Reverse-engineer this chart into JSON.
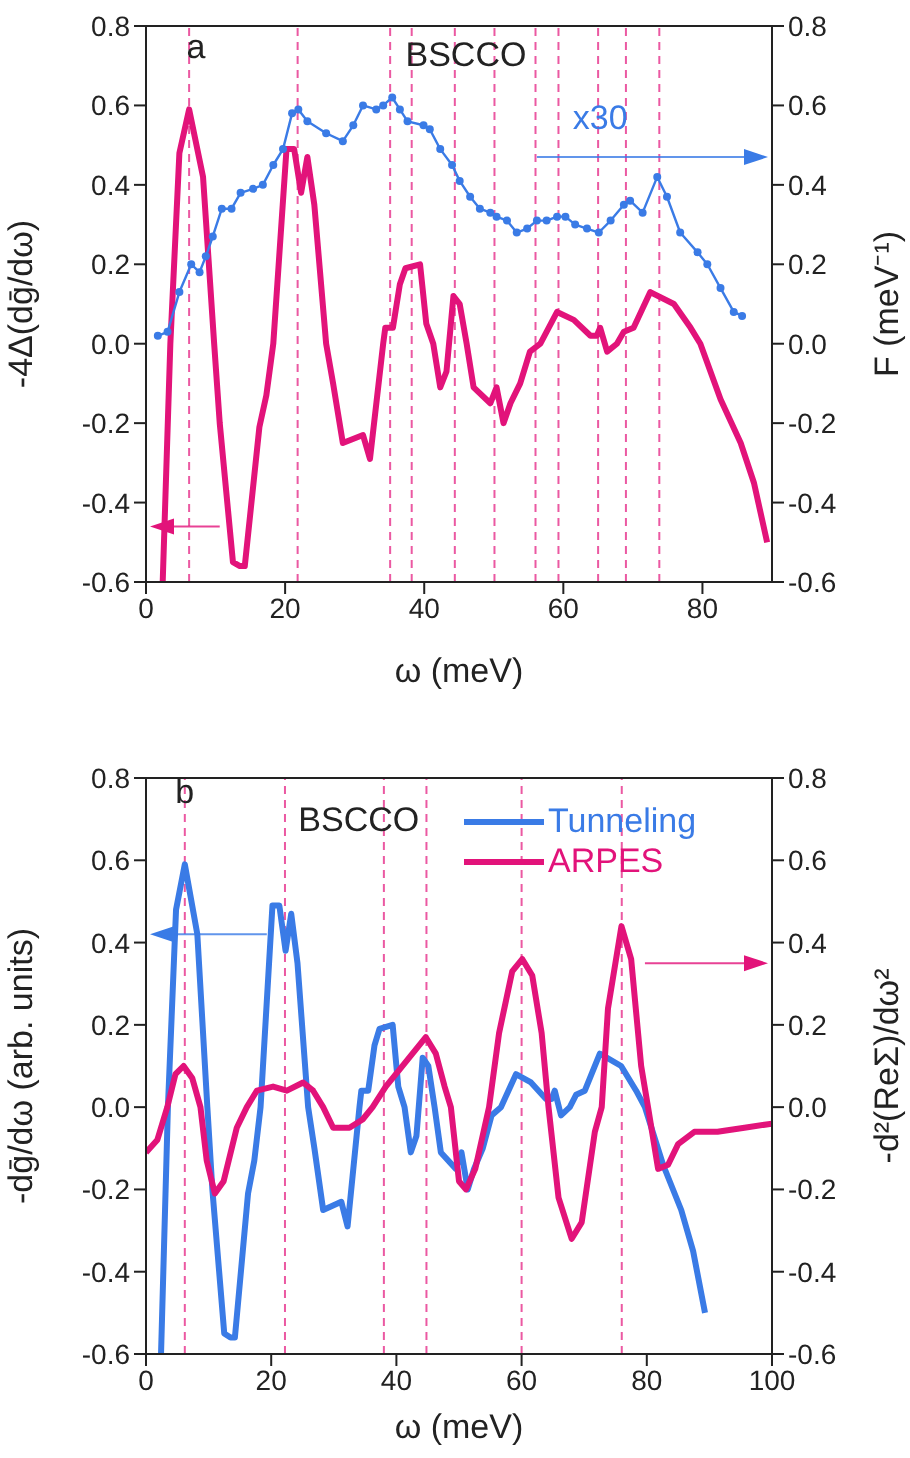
{
  "chart_data": [
    {
      "type": "line",
      "annotations": [
        "a",
        "BSCCO",
        "x30"
      ],
      "xlabel": "ω (meV)",
      "ylabel": "-4Δ(dḡ/dω)",
      "y2label": "F (meV⁻¹)",
      "xlim": [
        0,
        90
      ],
      "xticks": [
        0,
        20,
        40,
        60,
        80
      ],
      "ylim": [
        -0.6,
        0.8
      ],
      "yticks": [
        -0.6,
        -0.4,
        -0.2,
        {
          "value": 0,
          "label": "0.0"
        },
        0.2,
        0.4,
        0.6,
        0.8
      ],
      "y2lim": [
        -0.6,
        0.8
      ],
      "y2ticks": [
        -0.6,
        -0.4,
        -0.2,
        {
          "value": 0,
          "label": "0.0"
        },
        0.2,
        0.4,
        0.6,
        0.8
      ],
      "legend": false,
      "grid": false,
      "series": [
        {
          "color": "#e2137a",
          "x": [
            2.4,
            3.5,
            4.8,
            6.2,
            8.2,
            9.8,
            10.6,
            12.5,
            13.5,
            14.2,
            16.3,
            17.3,
            18.3,
            20.2,
            21.3,
            22.3,
            23.2,
            24.2,
            25.9,
            26.9,
            28.3,
            31.2,
            32.2,
            34.1,
            34.4,
            35.5,
            36.5,
            37.3,
            39.4,
            40.3,
            41.3,
            42.3,
            43.2,
            44.2,
            45.1,
            46.1,
            47.1,
            49.5,
            50.4,
            51.4,
            52.4,
            53.8,
            55.2,
            56.7,
            59.1,
            61.5,
            63.9,
            64.8,
            65.3,
            66.3,
            67.7,
            68.7,
            70.1,
            72.5,
            75.9,
            78.3,
            79.7,
            82.6,
            85.5,
            87.4,
            89.3
          ],
          "values": [
            -0.6,
            0.0,
            0.48,
            0.59,
            0.42,
            0.0,
            -0.2,
            -0.55,
            -0.56,
            -0.56,
            -0.21,
            -0.13,
            0.0,
            0.49,
            0.49,
            0.38,
            0.47,
            0.35,
            0.0,
            -0.1,
            -0.25,
            -0.23,
            -0.29,
            0.0,
            0.04,
            0.04,
            0.15,
            0.19,
            0.2,
            0.05,
            0.0,
            -0.11,
            -0.07,
            0.12,
            0.1,
            0.0,
            -0.11,
            -0.15,
            -0.11,
            -0.2,
            -0.15,
            -0.1,
            -0.02,
            0.0,
            0.08,
            0.06,
            0.02,
            0.02,
            0.04,
            -0.02,
            0.0,
            0.03,
            0.04,
            0.13,
            0.1,
            0.04,
            0.0,
            -0.14,
            -0.25,
            -0.35,
            -0.5
          ]
        },
        {
          "color": "#3a7be6",
          "axis": "y2",
          "marker": "circle",
          "x": [
            1.7,
            3.1,
            4.8,
            6.5,
            7.7,
            8.6,
            9.6,
            10.9,
            12.3,
            13.6,
            15.4,
            16.8,
            18.3,
            19.7,
            21.0,
            21.9,
            23.2,
            25.9,
            28.3,
            29.8,
            31.2,
            33.1,
            34.1,
            35.4,
            36.5,
            37.6,
            39.9,
            40.8,
            42.3,
            44.0,
            45.1,
            46.6,
            48.0,
            49.5,
            50.4,
            51.9,
            53.3,
            54.8,
            56.2,
            57.6,
            59.1,
            60.3,
            61.7,
            63.4,
            65.1,
            66.8,
            68.7,
            69.6,
            71.4,
            73.5,
            74.9,
            76.8,
            79.3,
            80.7,
            82.6,
            84.5,
            85.7
          ],
          "values": [
            0.02,
            0.03,
            0.13,
            0.2,
            0.18,
            0.22,
            0.27,
            0.34,
            0.34,
            0.38,
            0.39,
            0.4,
            0.45,
            0.49,
            0.58,
            0.59,
            0.56,
            0.53,
            0.51,
            0.55,
            0.6,
            0.59,
            0.6,
            0.62,
            0.59,
            0.56,
            0.55,
            0.54,
            0.49,
            0.45,
            0.41,
            0.37,
            0.34,
            0.33,
            0.32,
            0.31,
            0.28,
            0.29,
            0.31,
            0.31,
            0.32,
            0.32,
            0.3,
            0.29,
            0.28,
            0.31,
            0.35,
            0.36,
            0.33,
            0.42,
            0.37,
            0.28,
            0.23,
            0.2,
            0.14,
            0.08,
            0.07
          ]
        }
      ],
      "ref_lines": [
        {
          "axis": "x",
          "value": 6.2,
          "color": "#e2137a",
          "line_style": "dashed"
        },
        {
          "axis": "x",
          "value": 21.8,
          "color": "#e2137a",
          "line_style": "dashed"
        },
        {
          "axis": "x",
          "value": 35.1,
          "color": "#e2137a",
          "line_style": "dashed"
        },
        {
          "axis": "x",
          "value": 38.2,
          "color": "#e2137a",
          "line_style": "dashed"
        },
        {
          "axis": "x",
          "value": 44.4,
          "color": "#e2137a",
          "line_style": "dashed"
        },
        {
          "axis": "x",
          "value": 50.1,
          "color": "#e2137a",
          "line_style": "dashed"
        },
        {
          "axis": "x",
          "value": 56.0,
          "color": "#e2137a",
          "line_style": "dashed"
        },
        {
          "axis": "x",
          "value": 59.3,
          "color": "#e2137a",
          "line_style": "dashed"
        },
        {
          "axis": "x",
          "value": 65.0,
          "color": "#e2137a",
          "line_style": "dashed"
        },
        {
          "axis": "x",
          "value": 69.0,
          "color": "#e2137a",
          "line_style": "dashed"
        },
        {
          "axis": "x",
          "value": 73.8,
          "color": "#e2137a",
          "line_style": "dashed"
        }
      ]
    },
    {
      "type": "line",
      "annotations": [
        "b",
        "BSCCO"
      ],
      "xlabel": "ω (meV)",
      "ylabel": "-dḡ/dω (arb. units)",
      "y2label": "-d²(ReΣ)/dω²",
      "xlim": [
        0,
        100
      ],
      "xticks": [
        0,
        20,
        40,
        60,
        80,
        100
      ],
      "ylim": [
        -0.6,
        0.8
      ],
      "yticks": [
        -0.6,
        -0.4,
        -0.2,
        {
          "value": 0,
          "label": "0.0"
        },
        0.2,
        0.4,
        0.6,
        0.8
      ],
      "y2lim": [
        -0.6,
        0.8
      ],
      "y2ticks": [
        -0.6,
        -0.4,
        -0.2,
        {
          "value": 0,
          "label": "0.0"
        },
        0.2,
        0.4,
        0.6,
        0.8
      ],
      "legend": "top right",
      "grid": false,
      "series": [
        {
          "name": "Tunneling",
          "color": "#3a7be6",
          "x": [
            2.4,
            3.5,
            4.8,
            6.2,
            8.2,
            9.8,
            10.6,
            12.5,
            13.5,
            14.2,
            16.3,
            17.3,
            18.3,
            20.2,
            21.3,
            22.3,
            23.2,
            24.2,
            25.9,
            26.9,
            28.3,
            31.2,
            32.2,
            34.1,
            34.4,
            35.5,
            36.5,
            37.3,
            39.4,
            40.3,
            41.3,
            42.3,
            43.2,
            44.2,
            45.1,
            46.1,
            47.1,
            49.5,
            50.4,
            51.4,
            52.4,
            53.8,
            55.2,
            56.7,
            59.1,
            61.5,
            63.9,
            64.8,
            65.3,
            66.3,
            67.7,
            68.7,
            70.1,
            72.5,
            75.9,
            78.3,
            79.7,
            82.6,
            85.5,
            87.4,
            89.3
          ],
          "values": [
            -0.6,
            0.0,
            0.48,
            0.59,
            0.42,
            0.0,
            -0.2,
            -0.55,
            -0.56,
            -0.56,
            -0.21,
            -0.13,
            0.0,
            0.49,
            0.49,
            0.38,
            0.47,
            0.35,
            0.0,
            -0.1,
            -0.25,
            -0.23,
            -0.29,
            0.0,
            0.04,
            0.04,
            0.15,
            0.19,
            0.2,
            0.05,
            0.0,
            -0.11,
            -0.07,
            0.12,
            0.1,
            0.0,
            -0.11,
            -0.15,
            -0.11,
            -0.2,
            -0.15,
            -0.1,
            -0.02,
            0.0,
            0.08,
            0.06,
            0.02,
            0.02,
            0.04,
            -0.02,
            0.0,
            0.03,
            0.04,
            0.13,
            0.1,
            0.04,
            0.0,
            -0.14,
            -0.25,
            -0.35,
            -0.5
          ]
        },
        {
          "name": "ARPES",
          "color": "#e2137a",
          "axis": "y2",
          "x": [
            0,
            1.8,
            3.4,
            4.7,
            6.0,
            7.4,
            8.7,
            9.7,
            11.0,
            12.4,
            14.5,
            16.1,
            17.7,
            20.3,
            22.5,
            25.1,
            26.7,
            28.3,
            29.9,
            32.5,
            34.6,
            36.2,
            38.3,
            41.5,
            44.7,
            46.3,
            47.7,
            48.7,
            50.0,
            51.1,
            52.6,
            54.8,
            56.4,
            58.5,
            60.1,
            61.7,
            63.2,
            64.3,
            65.9,
            68.0,
            69.6,
            71.7,
            72.8,
            73.8,
            75.95,
            77.5,
            79.1,
            80.2,
            81.8,
            83.4,
            85.0,
            87.6,
            91.3,
            95.6,
            100
          ],
          "values": [
            -0.11,
            -0.08,
            0.0,
            0.08,
            0.1,
            0.07,
            0.0,
            -0.13,
            -0.21,
            -0.18,
            -0.05,
            0.0,
            0.04,
            0.05,
            0.04,
            0.06,
            0.04,
            0.0,
            -0.05,
            -0.05,
            -0.03,
            0.0,
            0.05,
            0.11,
            0.17,
            0.13,
            0.05,
            0.0,
            -0.18,
            -0.2,
            -0.15,
            0.0,
            0.18,
            0.33,
            0.36,
            0.32,
            0.18,
            0.0,
            -0.22,
            -0.32,
            -0.28,
            -0.06,
            0.0,
            0.24,
            0.44,
            0.36,
            0.1,
            0.0,
            -0.15,
            -0.14,
            -0.09,
            -0.06,
            -0.06,
            -0.05,
            -0.04
          ]
        }
      ],
      "ref_lines": [
        {
          "axis": "x",
          "value": 6.2,
          "color": "#e2137a",
          "line_style": "dashed"
        },
        {
          "axis": "x",
          "value": 22.2,
          "color": "#e2137a",
          "line_style": "dashed"
        },
        {
          "axis": "x",
          "value": 38.0,
          "color": "#e2137a",
          "line_style": "dashed"
        },
        {
          "axis": "x",
          "value": 44.8,
          "color": "#e2137a",
          "line_style": "dashed"
        },
        {
          "axis": "x",
          "value": 60.0,
          "color": "#e2137a",
          "line_style": "dashed"
        },
        {
          "axis": "x",
          "value": 76.0,
          "color": "#e2137a",
          "line_style": "dashed"
        }
      ]
    }
  ]
}
